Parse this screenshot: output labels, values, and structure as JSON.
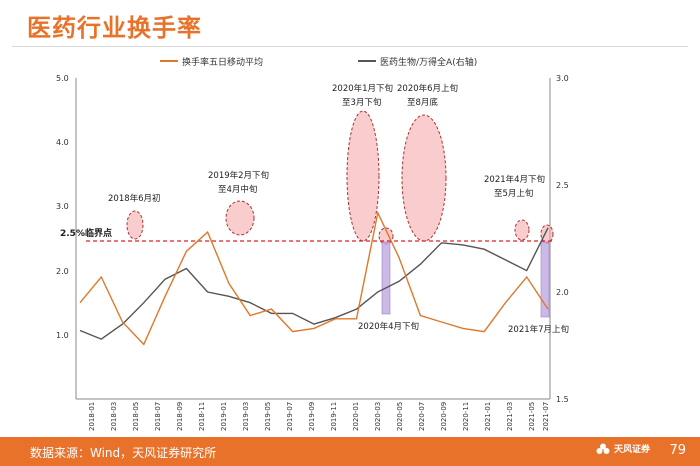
{
  "title": "医药行业换手率",
  "footer": {
    "source": "数据来源：Wind，天风证券研究所",
    "brand": "天风证券",
    "page": "79"
  },
  "colors": {
    "accent": "#e8722a",
    "turnover": "#e0782a",
    "index": "#555555",
    "threshold": "#e02020",
    "highlight": "#f4a4a4",
    "lowlight": "#b9a3dd"
  },
  "chart_data": {
    "type": "line",
    "legend": [
      "换手率五日移动平均",
      "医药生物/万得全A(右轴)"
    ],
    "x_ticks": [
      "2018-01",
      "2018-03",
      "2018-05",
      "2018-07",
      "2018-09",
      "2018-11",
      "2019-01",
      "2019-03",
      "2019-05",
      "2019-07",
      "2019-09",
      "2019-11",
      "2020-01",
      "2020-03",
      "2020-05",
      "2020-07",
      "2020-09",
      "2020-11",
      "2021-01",
      "2021-03",
      "2021-05",
      "2021-07"
    ],
    "y_left": {
      "ticks": [
        "1.0",
        "2.0",
        "3.0",
        "4.0",
        "5.0"
      ],
      "range": [
        0,
        5
      ]
    },
    "y_right": {
      "ticks": [
        "1.5",
        "2.0",
        "2.5",
        "3.0"
      ],
      "range": [
        1.5,
        3.0
      ]
    },
    "threshold": {
      "value": 2.5,
      "label": "2.5%临界点"
    },
    "series": [
      {
        "name": "换手率五日移动平均",
        "axis": "left",
        "x": [
          0,
          1,
          2,
          3,
          4,
          5,
          6,
          7,
          8,
          9,
          10,
          11,
          12,
          13,
          14,
          15,
          16,
          17,
          18,
          19,
          20,
          21,
          22
        ],
        "values": [
          1.5,
          1.9,
          1.2,
          0.85,
          1.6,
          2.3,
          2.6,
          1.8,
          1.3,
          1.4,
          1.05,
          1.1,
          1.25,
          1.25,
          2.9,
          2.2,
          1.3,
          1.2,
          1.1,
          1.05,
          1.5,
          1.9,
          1.4
        ]
      },
      {
        "name": "医药生物/万得全A(右轴)",
        "axis": "right",
        "x": [
          0,
          1,
          2,
          3,
          4,
          5,
          6,
          7,
          8,
          9,
          10,
          11,
          12,
          13,
          14,
          15,
          16,
          17,
          18,
          19,
          20,
          21,
          22
        ],
        "values": [
          1.82,
          1.78,
          1.85,
          1.95,
          2.06,
          2.11,
          2.0,
          1.98,
          1.95,
          1.9,
          1.9,
          1.85,
          1.88,
          1.92,
          2.0,
          2.05,
          2.13,
          2.23,
          2.22,
          2.2,
          2.15,
          2.1,
          2.3
        ]
      }
    ],
    "annotations": [
      {
        "label": "2018年6月初"
      },
      {
        "label": "2019年2月下旬至4月中旬"
      },
      {
        "label": "2020年1月下旬至3月下旬"
      },
      {
        "label": "2020年6月上旬至8月底"
      },
      {
        "label": "2021年4月下旬至5月上旬"
      },
      {
        "label": "2020年4月下旬"
      },
      {
        "label": "2021年7月上旬"
      }
    ]
  }
}
